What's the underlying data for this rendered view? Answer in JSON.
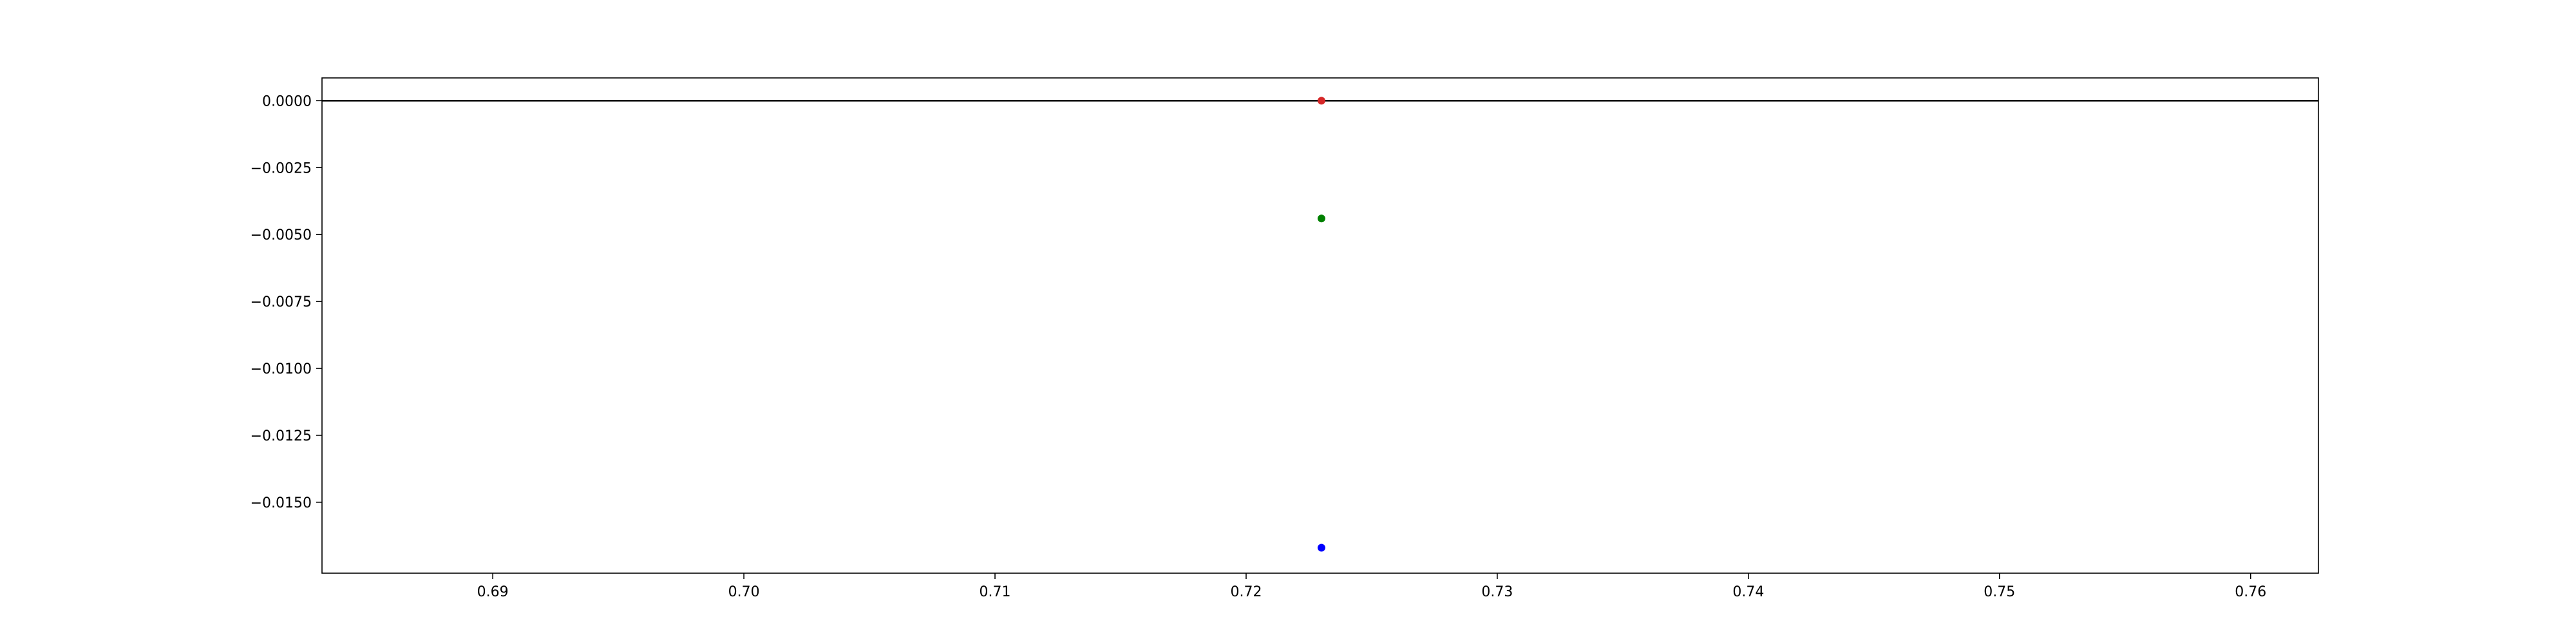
{
  "chart_data": {
    "type": "scatter",
    "title": "",
    "xlabel": "",
    "ylabel": "",
    "xlim": [
      0.6832,
      0.7627
    ],
    "ylim": [
      -0.01765,
      0.00085
    ],
    "x_ticks": [
      0.69,
      0.7,
      0.71,
      0.72,
      0.73,
      0.74,
      0.75,
      0.76
    ],
    "x_tick_labels": [
      "0.69",
      "0.70",
      "0.71",
      "0.72",
      "0.73",
      "0.74",
      "0.75",
      "0.76"
    ],
    "y_ticks": [
      0.0,
      -0.0025,
      -0.005,
      -0.0075,
      -0.01,
      -0.0125,
      -0.015
    ],
    "y_tick_labels": [
      "0.0000",
      "−0.0025",
      "−0.0050",
      "−0.0075",
      "−0.0100",
      "−0.0125",
      "−0.0150"
    ],
    "reference_line": {
      "y": 0.0,
      "color": "#000000"
    },
    "grid": false,
    "legend": "none",
    "points": [
      {
        "x": 0.723,
        "y": 0.0,
        "color": "#d62728"
      },
      {
        "x": 0.723,
        "y": -0.0044,
        "color": "#008000"
      },
      {
        "x": 0.723,
        "y": -0.0167,
        "color": "#0000ff"
      }
    ]
  }
}
